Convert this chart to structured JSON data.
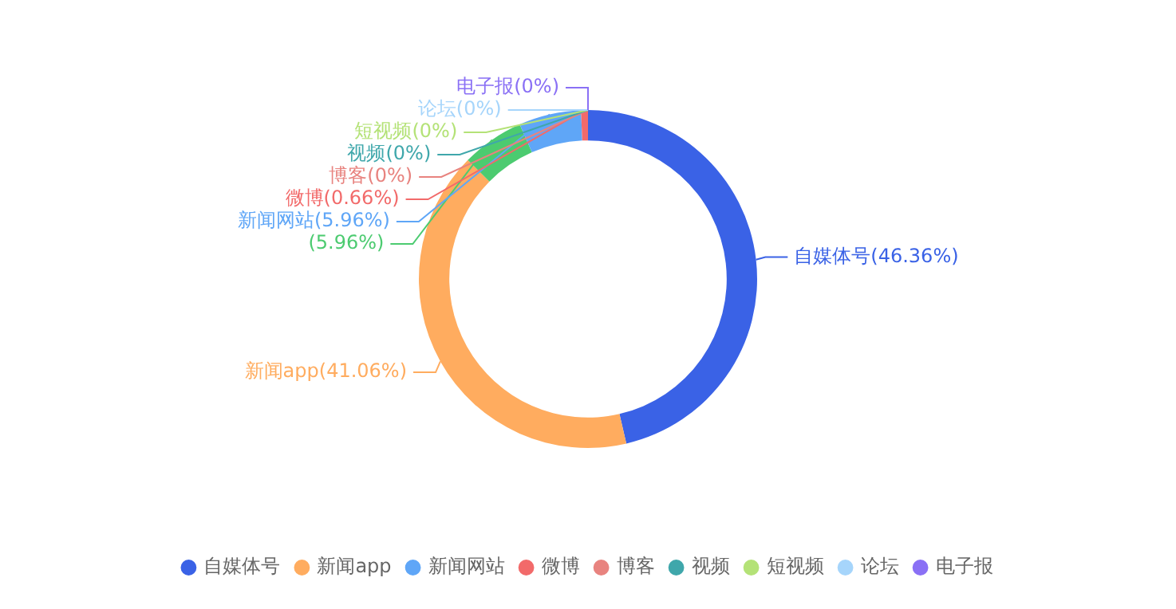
{
  "chart_data": {
    "type": "donut",
    "categories": [
      "自媒体号",
      "新闻app",
      null,
      "新闻网站",
      "微博",
      "博客",
      "视频",
      "短视频",
      "论坛",
      "电子报"
    ],
    "values": [
      46.36,
      41.06,
      5.96,
      5.96,
      0.66,
      0,
      0,
      0,
      0,
      0
    ],
    "value_labels": [
      "(46.36%)",
      "(41.06%)",
      "(5.96%)",
      "(5.96%)",
      "(0.66%)",
      "(0%)",
      "(0%)",
      "(0%)",
      "(0%)",
      "(0%)"
    ],
    "colors": [
      "#3a62e6",
      "#ffac5f",
      "#4ccb70",
      "#5fa6f7",
      "#f26a6a",
      "#e8837f",
      "#3fa7ab",
      "#b4e277",
      "#a6d5fb",
      "#8a70f5"
    ],
    "legend": "bottom"
  }
}
